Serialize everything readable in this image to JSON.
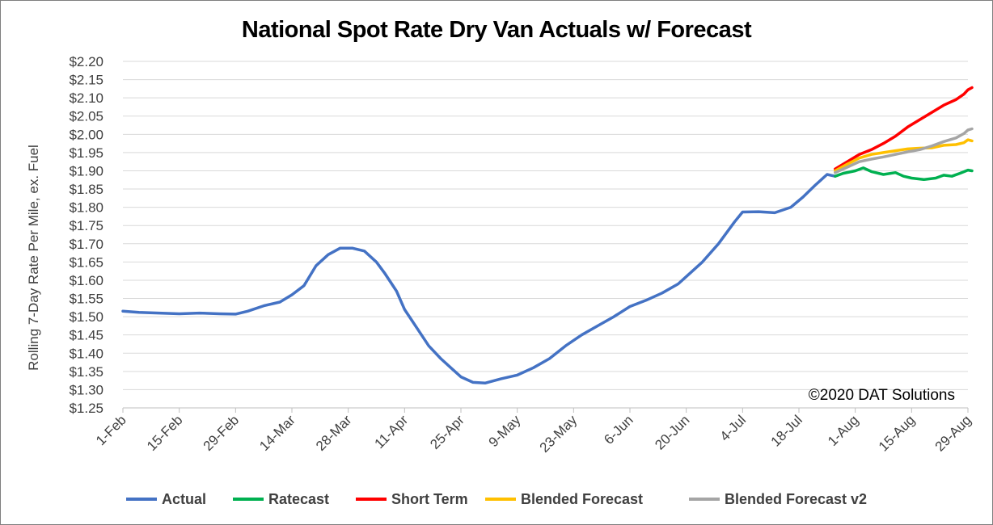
{
  "chart_data": {
    "type": "line",
    "title": "National Spot Rate Dry Van Actuals w/ Forecast",
    "ylabel": "Rolling 7-Day Rate Per Mile, ex. Fuel",
    "xlabel": "",
    "ylim": [
      1.25,
      2.2
    ],
    "yticks": [
      "$2.20",
      "$2.15",
      "$2.10",
      "$2.05",
      "$2.00",
      "$1.95",
      "$1.90",
      "$1.85",
      "$1.80",
      "$1.75",
      "$1.70",
      "$1.65",
      "$1.60",
      "$1.55",
      "$1.50",
      "$1.45",
      "$1.40",
      "$1.35",
      "$1.30",
      "$1.25"
    ],
    "xticks": [
      "1-Feb",
      "15-Feb",
      "29-Feb",
      "14-Mar",
      "28-Mar",
      "11-Apr",
      "25-Apr",
      "9-May",
      "23-May",
      "6-Jun",
      "20-Jun",
      "4-Jul",
      "18-Jul",
      "1-Aug",
      "15-Aug",
      "29-Aug"
    ],
    "grid": "horizontal",
    "legend_position": "bottom",
    "annotation": "©2020 DAT Solutions",
    "series": [
      {
        "name": "Actual",
        "color": "#4472c4",
        "points": [
          [
            "1-Feb",
            1.515
          ],
          [
            "5-Feb",
            1.512
          ],
          [
            "10-Feb",
            1.51
          ],
          [
            "15-Feb",
            1.508
          ],
          [
            "20-Feb",
            1.51
          ],
          [
            "25-Feb",
            1.508
          ],
          [
            "29-Feb",
            1.507
          ],
          [
            "3-Mar",
            1.515
          ],
          [
            "7-Mar",
            1.53
          ],
          [
            "11-Mar",
            1.54
          ],
          [
            "14-Mar",
            1.56
          ],
          [
            "17-Mar",
            1.585
          ],
          [
            "20-Mar",
            1.64
          ],
          [
            "23-Mar",
            1.67
          ],
          [
            "26-Mar",
            1.688
          ],
          [
            "29-Mar",
            1.688
          ],
          [
            "1-Apr",
            1.68
          ],
          [
            "4-Apr",
            1.65
          ],
          [
            "6-Apr",
            1.62
          ],
          [
            "9-Apr",
            1.57
          ],
          [
            "11-Apr",
            1.52
          ],
          [
            "14-Apr",
            1.47
          ],
          [
            "17-Apr",
            1.42
          ],
          [
            "20-Apr",
            1.385
          ],
          [
            "23-Apr",
            1.355
          ],
          [
            "25-Apr",
            1.335
          ],
          [
            "28-Apr",
            1.32
          ],
          [
            "1-May",
            1.318
          ],
          [
            "5-May",
            1.33
          ],
          [
            "9-May",
            1.34
          ],
          [
            "13-May",
            1.36
          ],
          [
            "17-May",
            1.385
          ],
          [
            "21-May",
            1.42
          ],
          [
            "25-May",
            1.45
          ],
          [
            "29-May",
            1.475
          ],
          [
            "2-Jun",
            1.5
          ],
          [
            "6-Jun",
            1.528
          ],
          [
            "10-Jun",
            1.545
          ],
          [
            "14-Jun",
            1.565
          ],
          [
            "18-Jun",
            1.59
          ],
          [
            "20-Jun",
            1.61
          ],
          [
            "24-Jun",
            1.65
          ],
          [
            "28-Jun",
            1.7
          ],
          [
            "2-Jul",
            1.76
          ],
          [
            "4-Jul",
            1.787
          ],
          [
            "8-Jul",
            1.788
          ],
          [
            "12-Jul",
            1.785
          ],
          [
            "16-Jul",
            1.8
          ],
          [
            "19-Jul",
            1.828
          ],
          [
            "22-Jul",
            1.86
          ],
          [
            "25-Jul",
            1.89
          ],
          [
            "27-Jul",
            1.885
          ]
        ]
      },
      {
        "name": "Ratecast",
        "color": "#00b050",
        "points": [
          [
            "27-Jul",
            1.885
          ],
          [
            "29-Jul",
            1.893
          ],
          [
            "1-Aug",
            1.9
          ],
          [
            "3-Aug",
            1.908
          ],
          [
            "5-Aug",
            1.898
          ],
          [
            "8-Aug",
            1.89
          ],
          [
            "11-Aug",
            1.895
          ],
          [
            "13-Aug",
            1.885
          ],
          [
            "15-Aug",
            1.88
          ],
          [
            "18-Aug",
            1.876
          ],
          [
            "21-Aug",
            1.88
          ],
          [
            "23-Aug",
            1.888
          ],
          [
            "25-Aug",
            1.885
          ],
          [
            "27-Aug",
            1.893
          ],
          [
            "29-Aug",
            1.902
          ],
          [
            "30-Aug",
            1.9
          ]
        ]
      },
      {
        "name": "Short Term",
        "color": "#ff0000",
        "points": [
          [
            "27-Jul",
            1.905
          ],
          [
            "30-Jul",
            1.925
          ],
          [
            "2-Aug",
            1.945
          ],
          [
            "5-Aug",
            1.958
          ],
          [
            "8-Aug",
            1.975
          ],
          [
            "11-Aug",
            1.995
          ],
          [
            "14-Aug",
            2.02
          ],
          [
            "17-Aug",
            2.04
          ],
          [
            "20-Aug",
            2.06
          ],
          [
            "23-Aug",
            2.08
          ],
          [
            "26-Aug",
            2.095
          ],
          [
            "28-Aug",
            2.11
          ],
          [
            "29-Aug",
            2.122
          ],
          [
            "30-Aug",
            2.128
          ]
        ]
      },
      {
        "name": "Blended Forecast",
        "color": "#ffc000",
        "points": [
          [
            "27-Jul",
            1.9
          ],
          [
            "30-Jul",
            1.918
          ],
          [
            "2-Aug",
            1.935
          ],
          [
            "5-Aug",
            1.945
          ],
          [
            "8-Aug",
            1.95
          ],
          [
            "11-Aug",
            1.955
          ],
          [
            "14-Aug",
            1.96
          ],
          [
            "17-Aug",
            1.962
          ],
          [
            "20-Aug",
            1.963
          ],
          [
            "23-Aug",
            1.97
          ],
          [
            "26-Aug",
            1.972
          ],
          [
            "28-Aug",
            1.977
          ],
          [
            "29-Aug",
            1.985
          ],
          [
            "30-Aug",
            1.982
          ]
        ]
      },
      {
        "name": "Blended Forecast v2",
        "color": "#a5a5a5",
        "points": [
          [
            "27-Jul",
            1.895
          ],
          [
            "30-Jul",
            1.91
          ],
          [
            "2-Aug",
            1.925
          ],
          [
            "5-Aug",
            1.932
          ],
          [
            "8-Aug",
            1.938
          ],
          [
            "11-Aug",
            1.945
          ],
          [
            "14-Aug",
            1.952
          ],
          [
            "17-Aug",
            1.958
          ],
          [
            "20-Aug",
            1.968
          ],
          [
            "23-Aug",
            1.98
          ],
          [
            "26-Aug",
            1.99
          ],
          [
            "28-Aug",
            2.002
          ],
          [
            "29-Aug",
            2.012
          ],
          [
            "30-Aug",
            2.015
          ]
        ]
      }
    ]
  }
}
